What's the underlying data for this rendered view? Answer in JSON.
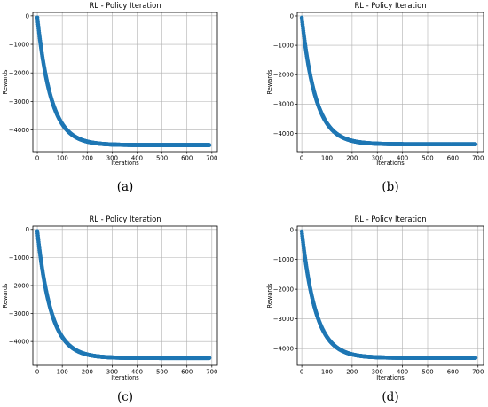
{
  "chart_data": [
    {
      "type": "scatter",
      "title": "RL - Policy Iteration",
      "xlabel": "Iterations",
      "ylabel": "Rewards",
      "caption": "(a)",
      "xlim": [
        -18,
        722
      ],
      "ylim": [
        -4760,
        120
      ],
      "xticks": [
        0,
        100,
        200,
        300,
        400,
        500,
        600,
        700
      ],
      "yticks": [
        0,
        -1000,
        -2000,
        -3000,
        -4000
      ],
      "grid": true,
      "marker_color": "#1f77b4",
      "curve": {
        "start": -60,
        "plateau": -4530,
        "rate": 0.018,
        "x_min": 0,
        "x_max": 690
      }
    },
    {
      "type": "scatter",
      "title": "RL - Policy Iteration",
      "xlabel": "Iterations",
      "ylabel": "Rewards",
      "caption": "(b)",
      "xlim": [
        -18,
        722
      ],
      "ylim": [
        -4620,
        120
      ],
      "xticks": [
        0,
        100,
        200,
        300,
        400,
        500,
        600,
        700
      ],
      "yticks": [
        0,
        -1000,
        -2000,
        -3000,
        -4000
      ],
      "grid": true,
      "marker_color": "#1f77b4",
      "curve": {
        "start": -60,
        "plateau": -4370,
        "rate": 0.018,
        "x_min": 0,
        "x_max": 690
      }
    },
    {
      "type": "scatter",
      "title": "RL - Policy Iteration",
      "xlabel": "Iterations",
      "ylabel": "Rewards",
      "caption": "(c)",
      "xlim": [
        -18,
        722
      ],
      "ylim": [
        -4850,
        120
      ],
      "xticks": [
        0,
        100,
        200,
        300,
        400,
        500,
        600,
        700
      ],
      "yticks": [
        0,
        -1000,
        -2000,
        -3000,
        -4000
      ],
      "grid": true,
      "marker_color": "#1f77b4",
      "curve": {
        "start": -60,
        "plateau": -4590,
        "rate": 0.018,
        "x_min": 0,
        "x_max": 690
      }
    },
    {
      "type": "scatter",
      "title": "RL - Policy Iteration",
      "xlabel": "Iterations",
      "ylabel": "Rewards",
      "caption": "(d)",
      "xlim": [
        -18,
        722
      ],
      "ylim": [
        -4560,
        120
      ],
      "xticks": [
        0,
        100,
        200,
        300,
        400,
        500,
        600,
        700
      ],
      "yticks": [
        0,
        -1000,
        -2000,
        -3000,
        -4000
      ],
      "grid": true,
      "marker_color": "#1f77b4",
      "curve": {
        "start": -60,
        "plateau": -4310,
        "rate": 0.018,
        "x_min": 0,
        "x_max": 690
      }
    }
  ]
}
